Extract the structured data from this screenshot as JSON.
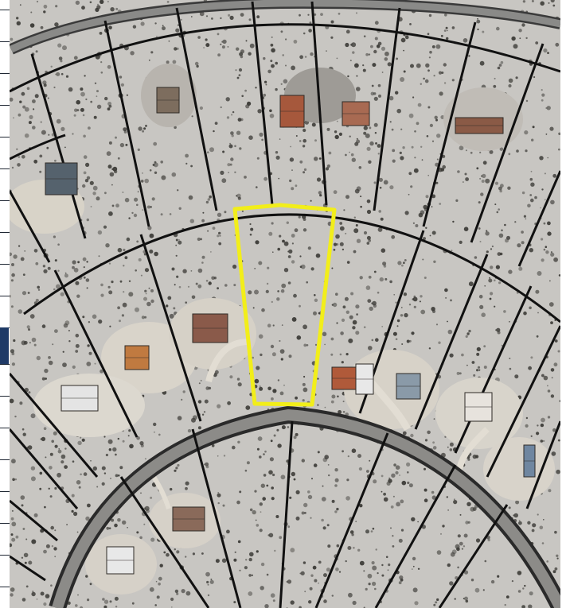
{
  "map": {
    "type": "aerial parcel map",
    "colors": {
      "ground": "#c8c6c2",
      "vegetation": "#3b3a36",
      "parcel_line": "#111111",
      "road": "#555555",
      "highlight": "#f2ee1a",
      "side_strip": "#1f3a66"
    },
    "highlighted_parcel": true
  }
}
